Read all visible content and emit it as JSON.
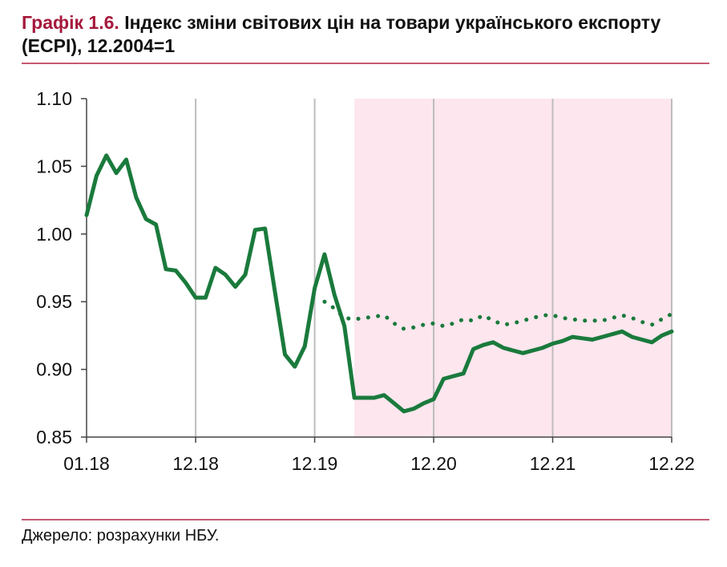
{
  "title": {
    "label": "Графік 1.6.",
    "text": "Індекс зміни світових цін на товари українського експорту (ECPI), 12.2004=1"
  },
  "source": "Джерело: розрахунки НБУ.",
  "colors": {
    "actual": "#1a7a3c",
    "forecast": "#1a7a3c",
    "shade": "#fde6ee",
    "grid": "#bdbdbd",
    "rule": "#c65a72",
    "title_label": "#a5193c"
  },
  "chart_data": {
    "type": "line",
    "x_tick_labels": [
      "01.18",
      "12.18",
      "12.19",
      "12.20",
      "12.21",
      "12.22"
    ],
    "x_tick_months": [
      0,
      11,
      23,
      35,
      47,
      59
    ],
    "xlim": [
      0,
      59
    ],
    "ylim": [
      0.85,
      1.1
    ],
    "y_ticks": [
      "0.85",
      "0.90",
      "0.95",
      "1.00",
      "1.05",
      "1.10"
    ],
    "grid": "vertical lines at x ticks",
    "shaded_region_months": [
      27,
      59
    ],
    "series": [
      {
        "style": "solid",
        "x": [
          0,
          1,
          2,
          3,
          4,
          5,
          6,
          7,
          8,
          9,
          10,
          11,
          12,
          13,
          14,
          15,
          16,
          17,
          18,
          19,
          20,
          21,
          22,
          23,
          24,
          25,
          26,
          27,
          28,
          29,
          30,
          31,
          32,
          33,
          34,
          35,
          36,
          37,
          38,
          39,
          40,
          41,
          42,
          43,
          44,
          45,
          46,
          47,
          48,
          49,
          50,
          51,
          52,
          53,
          54,
          55,
          56,
          57,
          58,
          59
        ],
        "y": [
          1.014,
          1.043,
          1.058,
          1.045,
          1.055,
          1.027,
          1.011,
          1.007,
          0.974,
          0.973,
          0.964,
          0.953,
          0.953,
          0.975,
          0.97,
          0.961,
          0.97,
          1.003,
          1.004,
          0.957,
          0.911,
          0.902,
          0.917,
          0.96,
          0.985,
          0.955,
          0.932,
          0.879,
          0.879,
          0.879,
          0.881,
          0.875,
          0.869,
          0.871,
          0.875,
          0.878,
          0.893,
          0.895,
          0.897,
          0.915,
          0.918,
          0.92,
          0.916,
          0.914,
          0.912,
          0.914,
          0.916,
          0.919,
          0.921,
          0.924,
          0.923,
          0.922,
          0.924,
          0.926,
          0.928,
          0.924,
          0.922,
          0.92,
          0.925,
          0.928
        ]
      },
      {
        "style": "dotted",
        "x": [
          24,
          25,
          26,
          27,
          28,
          29,
          30,
          31,
          32,
          33,
          34,
          35,
          36,
          37,
          38,
          39,
          40,
          41,
          42,
          43,
          44,
          45,
          46,
          47,
          48,
          49,
          50,
          51,
          52,
          53,
          54,
          55,
          56,
          57,
          58,
          59
        ],
        "y": [
          0.95,
          0.945,
          0.938,
          0.937,
          0.938,
          0.939,
          0.94,
          0.934,
          0.93,
          0.931,
          0.933,
          0.934,
          0.932,
          0.934,
          0.937,
          0.936,
          0.94,
          0.936,
          0.933,
          0.934,
          0.936,
          0.938,
          0.94,
          0.94,
          0.938,
          0.937,
          0.936,
          0.936,
          0.936,
          0.938,
          0.94,
          0.938,
          0.935,
          0.933,
          0.937,
          0.941
        ]
      }
    ]
  }
}
